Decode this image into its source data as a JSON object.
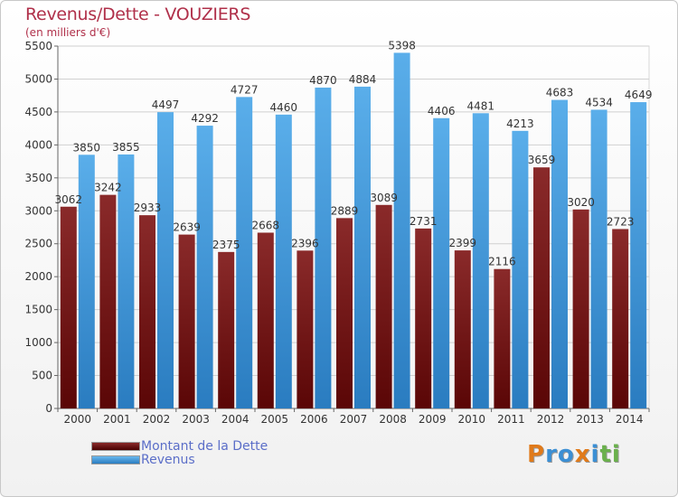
{
  "header": {
    "title": "Revenus/Dette - VOUZIERS",
    "subtitle": "(en milliers d'€)"
  },
  "colors": {
    "title": "#b0304a",
    "dette_light": "#8a2a2a",
    "dette_dark": "#5a0606",
    "revenus_light": "#5aaeea",
    "revenus_dark": "#2a7cc0",
    "legend_text": "#5b6ec8"
  },
  "legend": [
    {
      "label": "Montant de la Dette",
      "series_key": "dette"
    },
    {
      "label": "Revenus",
      "series_key": "revenus"
    }
  ],
  "logo": {
    "letters": [
      "P",
      "r",
      "o",
      "x",
      "i",
      "t",
      "i"
    ],
    "colors": [
      "#e07a1a",
      "#3b8fd4",
      "#3b8fd4",
      "#e07a1a",
      "#3b8fd4",
      "#6ab04c",
      "#6ab04c"
    ]
  },
  "chart_data": {
    "type": "bar",
    "title": "Revenus/Dette - VOUZIERS",
    "subtitle": "(en milliers d'€)",
    "xlabel": "",
    "ylabel": "",
    "categories": [
      "2000",
      "2001",
      "2002",
      "2003",
      "2004",
      "2005",
      "2006",
      "2007",
      "2008",
      "2009",
      "2010",
      "2011",
      "2012",
      "2013",
      "2014"
    ],
    "series": [
      {
        "name": "Montant de la Dette",
        "key": "dette",
        "values": [
          3062,
          3242,
          2933,
          2639,
          2375,
          2668,
          2396,
          2889,
          3089,
          2731,
          2399,
          2116,
          3659,
          3020,
          2723
        ],
        "labels": [
          "3062",
          "3242",
          "2933",
          "2639",
          "2375",
          "2668",
          "2396",
          "2889",
          "3089",
          "2731",
          "2399",
          "2116",
          "3659",
          "3020",
          "2723"
        ]
      },
      {
        "name": "Revenus",
        "key": "revenus",
        "values": [
          3850,
          3855,
          4497,
          4292,
          4727,
          4460,
          4870,
          4884,
          5398,
          4406,
          4481,
          4213,
          4683,
          4534,
          4649
        ],
        "labels": [
          "3850",
          "3855",
          "4497",
          "4292",
          "4727",
          "4460",
          "4870",
          "4884",
          "5398",
          "4406",
          "4481",
          "4213",
          "4683",
          "4534",
          "4649"
        ]
      }
    ],
    "ylim": [
      0,
      5500
    ],
    "yticks": [
      0,
      500,
      1000,
      1500,
      2000,
      2500,
      3000,
      3500,
      4000,
      4500,
      5000,
      5500
    ],
    "grid": true,
    "legend_position": "bottom-left"
  }
}
